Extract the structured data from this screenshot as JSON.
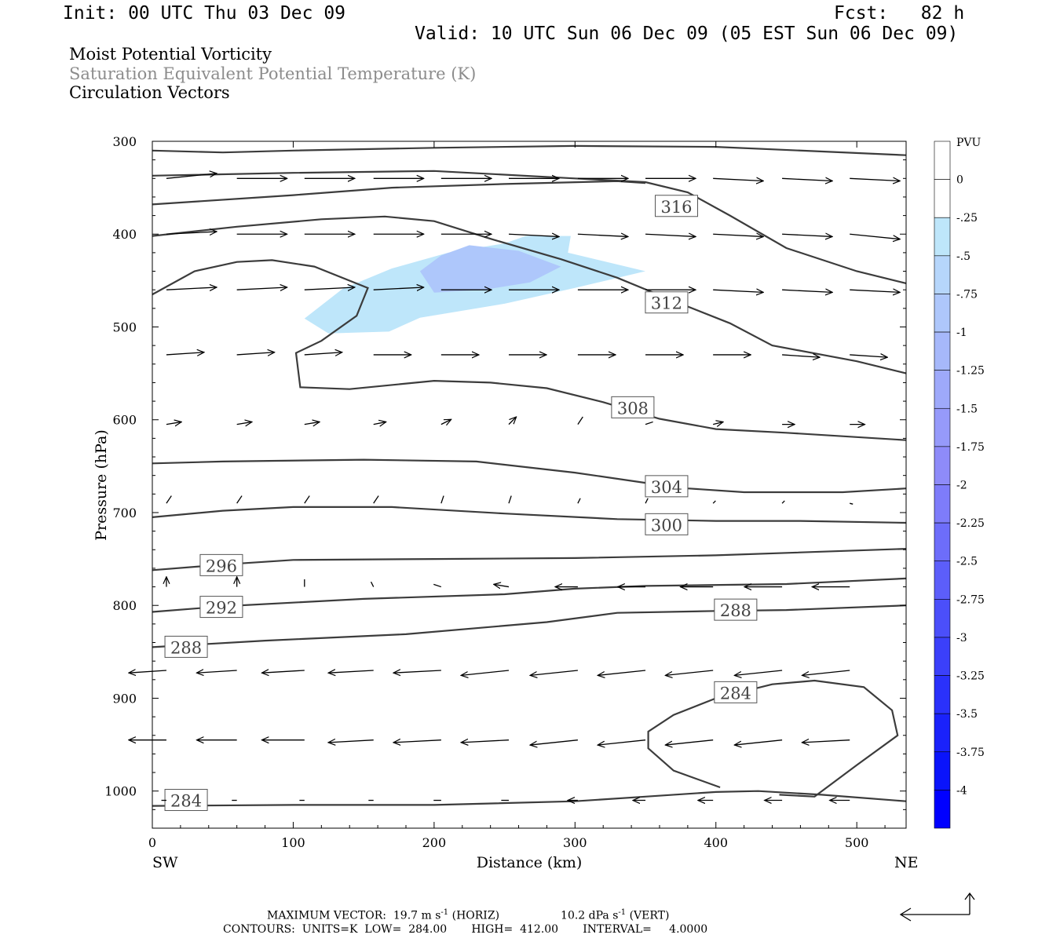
{
  "header": {
    "init": "Init: 00 UTC Thu 03 Dec 09",
    "fcst": "Fcst:   82 h",
    "valid": "Valid: 10 UTC Sun 06 Dec 09 (05 EST Sun 06 Dec 09)"
  },
  "titles": {
    "line1": "Moist Potential Vorticity",
    "line2": "Saturation Equivalent Potential Temperature (K)",
    "line3": "Circulation Vectors"
  },
  "chart_data": {
    "type": "contour",
    "xlabel": "Distance (km)",
    "ylabel": "Pressure (hPa)",
    "xlim": [
      0,
      535
    ],
    "ylim": [
      1040,
      300
    ],
    "xticks": [
      "0",
      "100",
      "200",
      "300",
      "400",
      "500"
    ],
    "yticks": [
      "300",
      "400",
      "500",
      "600",
      "700",
      "800",
      "900",
      "1000"
    ],
    "x_end_labels": {
      "left": "SW",
      "right": "NE"
    },
    "colorbar": {
      "title": "PVU",
      "labels": [
        "0",
        "-.25",
        "-.5",
        "-.75",
        "-1",
        "-1.25",
        "-1.5",
        "-1.75",
        "-2",
        "-2.25",
        "-2.5",
        "-2.75",
        "-3",
        "-3.25",
        "-3.5",
        "-3.75",
        "-4"
      ],
      "colors": [
        "#ffffff",
        "#ffffff",
        "#bee6fa",
        "#b6d6fb",
        "#aec7fb",
        "#a6b8fa",
        "#9ea9fa",
        "#969afa",
        "#8e8bf9",
        "#7e7cfa",
        "#6d6dfa",
        "#5c5efa",
        "#4b4ffa",
        "#3b40fa",
        "#2a31fb",
        "#1a22fb",
        "#0a14fb",
        "#0000ff"
      ]
    },
    "pv_regions": [
      {
        "level": "-.25 to -.5",
        "color": "#bee6fa",
        "points": [
          [
            108,
            491
          ],
          [
            135,
            459
          ],
          [
            170,
            437
          ],
          [
            210,
            420
          ],
          [
            250,
            410
          ],
          [
            265,
            402
          ],
          [
            297,
            402
          ],
          [
            295,
            420
          ],
          [
            350,
            440
          ],
          [
            300,
            458
          ],
          [
            250,
            475
          ],
          [
            190,
            490
          ],
          [
            168,
            505
          ],
          [
            125,
            507
          ],
          [
            108,
            491
          ]
        ]
      },
      {
        "level": "-.5 to -.75",
        "color": "#aec7fb",
        "points": [
          [
            190,
            440
          ],
          [
            205,
            423
          ],
          [
            225,
            412
          ],
          [
            260,
            418
          ],
          [
            290,
            435
          ],
          [
            268,
            452
          ],
          [
            235,
            460
          ],
          [
            200,
            463
          ],
          [
            190,
            440
          ]
        ]
      }
    ],
    "contours": [
      {
        "label": "316",
        "label_at": [
          372,
          370
        ],
        "points": [
          [
            0,
            310
          ],
          [
            50,
            312
          ],
          [
            100,
            310
          ],
          [
            200,
            307
          ],
          [
            300,
            305
          ],
          [
            400,
            306
          ],
          [
            535,
            315
          ]
        ]
      },
      {
        "label": "",
        "points": [
          [
            0,
            337
          ],
          [
            100,
            334
          ],
          [
            200,
            332
          ],
          [
            300,
            340
          ],
          [
            350,
            344
          ],
          [
            380,
            355
          ],
          [
            410,
            380
          ],
          [
            450,
            415
          ],
          [
            500,
            440
          ],
          [
            535,
            453
          ]
        ]
      },
      {
        "label": "",
        "points": [
          [
            0,
            368
          ],
          [
            100,
            358
          ],
          [
            170,
            350
          ],
          [
            250,
            346
          ],
          [
            330,
            343
          ],
          [
            350,
            345
          ]
        ]
      },
      {
        "label": "312",
        "label_at": [
          365,
          474
        ],
        "points": [
          [
            0,
            402
          ],
          [
            60,
            392
          ],
          [
            120,
            384
          ],
          [
            165,
            381
          ],
          [
            200,
            386
          ],
          [
            240,
            405
          ],
          [
            290,
            427
          ],
          [
            330,
            447
          ],
          [
            370,
            472
          ],
          [
            410,
            496
          ],
          [
            440,
            520
          ],
          [
            500,
            537
          ],
          [
            535,
            550
          ]
        ]
      },
      {
        "label": "308",
        "label_at": [
          341,
          587
        ],
        "points": [
          [
            0,
            465
          ],
          [
            30,
            440
          ],
          [
            60,
            430
          ],
          [
            85,
            428
          ],
          [
            115,
            435
          ],
          [
            153,
            458
          ],
          [
            145,
            488
          ],
          [
            120,
            515
          ],
          [
            102,
            528
          ],
          [
            105,
            565
          ],
          [
            140,
            567
          ],
          [
            200,
            558
          ],
          [
            240,
            560
          ],
          [
            280,
            566
          ],
          [
            320,
            581
          ],
          [
            360,
            599
          ],
          [
            400,
            610
          ],
          [
            450,
            614
          ],
          [
            535,
            622
          ]
        ]
      },
      {
        "label": "304",
        "label_at": [
          365,
          672
        ],
        "points": [
          [
            0,
            647
          ],
          [
            50,
            645
          ],
          [
            150,
            643
          ],
          [
            230,
            645
          ],
          [
            300,
            657
          ],
          [
            350,
            668
          ],
          [
            380,
            674
          ],
          [
            420,
            678
          ],
          [
            490,
            678
          ],
          [
            535,
            674
          ]
        ]
      },
      {
        "label": "300",
        "label_at": [
          365,
          713
        ],
        "points": [
          [
            0,
            705
          ],
          [
            50,
            698
          ],
          [
            100,
            694
          ],
          [
            170,
            694
          ],
          [
            250,
            701
          ],
          [
            330,
            707
          ],
          [
            400,
            709
          ],
          [
            460,
            709
          ],
          [
            535,
            711
          ]
        ]
      },
      {
        "label": "296",
        "label_at": [
          49,
          757
        ],
        "points": [
          [
            0,
            762
          ],
          [
            50,
            756
          ],
          [
            100,
            751
          ],
          [
            200,
            750
          ],
          [
            300,
            749
          ],
          [
            400,
            746
          ],
          [
            535,
            739
          ]
        ]
      },
      {
        "label": "292",
        "label_at": [
          49,
          802
        ],
        "points": [
          [
            0,
            807
          ],
          [
            50,
            801
          ],
          [
            150,
            793
          ],
          [
            250,
            788
          ],
          [
            300,
            782
          ],
          [
            350,
            779
          ],
          [
            450,
            777
          ],
          [
            535,
            771
          ]
        ]
      },
      {
        "label": "288",
        "label_at": [
          414,
          805
        ],
        "points": [
          [
            0,
            845
          ],
          [
            80,
            838
          ],
          [
            180,
            831
          ],
          [
            280,
            818
          ],
          [
            330,
            808
          ],
          [
            400,
            806
          ],
          [
            450,
            805
          ],
          [
            535,
            800
          ]
        ]
      },
      {
        "label": "288",
        "label_at": [
          24,
          845
        ],
        "points": []
      },
      {
        "label": "284",
        "label_at": [
          414,
          894
        ],
        "points": [
          [
            403,
            996
          ],
          [
            370,
            978
          ],
          [
            352,
            954
          ],
          [
            352,
            936
          ],
          [
            370,
            918
          ],
          [
            400,
            900
          ],
          [
            440,
            885
          ],
          [
            470,
            881
          ],
          [
            505,
            888
          ],
          [
            525,
            913
          ],
          [
            529,
            940
          ],
          [
            500,
            972
          ],
          [
            470,
            1006
          ],
          [
            445,
            1004
          ]
        ]
      },
      {
        "label": "284",
        "label_at": [
          24,
          1010
        ],
        "points": [
          [
            0,
            1016
          ],
          [
            100,
            1015
          ],
          [
            200,
            1015
          ],
          [
            300,
            1011
          ],
          [
            350,
            1006
          ],
          [
            400,
            1001
          ],
          [
            430,
            1000
          ],
          [
            475,
            1004
          ],
          [
            535,
            1011
          ]
        ]
      }
    ],
    "vectors": [
      {
        "p": 340,
        "u": [
          20,
          20,
          20,
          20,
          20,
          20,
          20,
          20,
          20,
          20,
          20
        ],
        "w": [
          -2,
          0,
          0,
          0,
          0,
          0,
          0,
          0,
          1,
          1,
          1
        ]
      },
      {
        "p": 400,
        "u": [
          20,
          20,
          20,
          20,
          20,
          20,
          20,
          20,
          20,
          20,
          20
        ],
        "w": [
          -1,
          0,
          0,
          0,
          0,
          1,
          1,
          1,
          1,
          1,
          2
        ]
      },
      {
        "p": 460,
        "u": [
          20,
          20,
          20,
          20,
          20,
          20,
          20,
          20,
          20,
          20,
          20
        ],
        "w": [
          -1,
          -1,
          -1,
          -1,
          0,
          0,
          0,
          0,
          1,
          1,
          1
        ]
      },
      {
        "p": 530,
        "u": [
          15,
          15,
          15,
          15,
          15,
          15,
          15,
          15,
          15,
          15,
          15
        ],
        "w": [
          -1,
          -1,
          -1,
          0,
          0,
          0,
          0,
          0,
          0,
          1,
          1
        ]
      },
      {
        "p": 605,
        "u": [
          6,
          6,
          6,
          5,
          4,
          3,
          2,
          3,
          4,
          5,
          6
        ],
        "w": [
          -1,
          -1,
          -1,
          -1,
          -2,
          -3,
          -3,
          -1,
          -1,
          0,
          0
        ]
      },
      {
        "p": 690,
        "u": [
          2,
          2,
          2,
          2,
          1,
          1,
          1,
          1,
          1,
          1,
          0
        ],
        "w": [
          -3,
          -3,
          -3,
          -3,
          -3,
          -3,
          -2,
          -2,
          -1,
          -1,
          0
        ]
      },
      {
        "p": 780,
        "u": [
          0,
          0,
          0,
          -1,
          -3,
          -6,
          -9,
          -11,
          -13,
          -15,
          -15
        ],
        "w": [
          -4,
          -4,
          -3,
          -2,
          -1,
          -1,
          0,
          0,
          0,
          0,
          0
        ]
      },
      {
        "p": 870,
        "u": [
          -15,
          -16,
          -17,
          -18,
          -19,
          -19,
          -19,
          -19,
          -19,
          -19,
          -19
        ],
        "w": [
          1,
          1,
          1,
          1,
          1,
          2,
          2,
          2,
          2,
          2,
          2
        ]
      },
      {
        "p": 945,
        "u": [
          -15,
          -16,
          -17,
          -18,
          -19,
          -19,
          -19,
          -19,
          -19,
          -19,
          -19
        ],
        "w": [
          0,
          0,
          0,
          1,
          1,
          1,
          2,
          2,
          2,
          2,
          1
        ]
      },
      {
        "p": 1010,
        "u": [
          -2,
          -2,
          -2,
          -2,
          -3,
          -3,
          -4,
          -5,
          -6,
          -7,
          -8
        ],
        "w": [
          0,
          0,
          0,
          0,
          0,
          0,
          0,
          0,
          0,
          0,
          0
        ]
      }
    ],
    "vector_x": [
      10,
      60,
      108,
      157,
      205,
      253,
      302,
      350,
      398,
      447,
      495
    ]
  },
  "footer": {
    "max_vector_prefix": "MAXIMUM VECTOR:  19.7 m s",
    "max_vector_horiz": " (HORIZ)",
    "max_vector_vert_prefix": "10.2 dPa s",
    "max_vector_vert": " (VERT)",
    "exponent": "-1",
    "contours_line": "CONTOURS:  UNITS=K  LOW=  284.00       HIGH=  412.00       INTERVAL=     4.0000"
  }
}
